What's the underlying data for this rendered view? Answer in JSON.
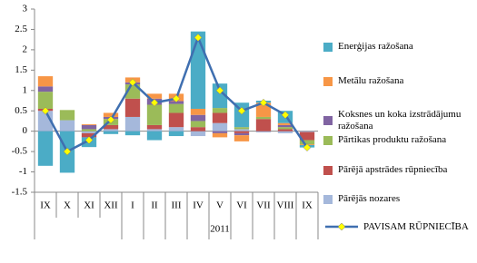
{
  "chart_data": {
    "type": "bar",
    "stacked": true,
    "categories": [
      "IX",
      "X",
      "XI",
      "XII",
      "I",
      "II",
      "III",
      "IV",
      "V",
      "VI",
      "VII",
      "VIII",
      "IX"
    ],
    "group_label": "2011",
    "series": [
      {
        "name": "Pārējās nozares",
        "color": "#a5b8db",
        "values": [
          0.5,
          0.27,
          -0.05,
          0.05,
          0.35,
          0.05,
          0.1,
          -0.12,
          0.2,
          0.05,
          -0.03,
          -0.05,
          -0.02
        ]
      },
      {
        "name": "Pārējā apstrādes rūpniecība",
        "color": "#c0504d",
        "values": [
          0.05,
          0,
          -0.1,
          0.1,
          0.45,
          0.1,
          0.35,
          0.1,
          0.25,
          -0.05,
          0.3,
          0.05,
          -0.2
        ]
      },
      {
        "name": "Pārtikas produktu ražošana",
        "color": "#9bbb59",
        "values": [
          0.42,
          0.25,
          0.05,
          0.15,
          0.35,
          0.5,
          0.22,
          0.15,
          0.12,
          0.05,
          0.05,
          0.05,
          -0.1
        ]
      },
      {
        "name": "Koksnes un koka izstrādājumu ražošana",
        "color": "#8064a2",
        "values": [
          0.13,
          0,
          0.1,
          0.05,
          0.05,
          0.15,
          0.07,
          0.15,
          -0.05,
          -0.05,
          0,
          0.05,
          0
        ]
      },
      {
        "name": "Metālu ražošana",
        "color": "#f79646",
        "values": [
          0.25,
          0,
          0.02,
          0.1,
          0.12,
          0.12,
          0.18,
          0.15,
          -0.1,
          -0.15,
          0.35,
          0.05,
          -0.02
        ]
      },
      {
        "name": "Enerģijas ražošana",
        "color": "#4bacc6",
        "values": [
          -0.85,
          -1.02,
          -0.24,
          -0.07,
          -0.1,
          -0.22,
          -0.12,
          1.9,
          0.6,
          0.6,
          0.05,
          0.3,
          -0.06
        ]
      }
    ],
    "line": {
      "name": "PAVISAM RŪPNIECĪBA",
      "color": "#3f6fb0",
      "marker_color": "#ffff00",
      "values": [
        0.5,
        -0.5,
        -0.22,
        0.28,
        1.2,
        0.7,
        0.8,
        2.3,
        1.0,
        0.5,
        0.7,
        0.4,
        -0.4
      ]
    },
    "ylim": [
      -1.5,
      3
    ],
    "yticks": [
      -1.5,
      -1,
      -0.5,
      0,
      0.5,
      1,
      1.5,
      2,
      2.5,
      3
    ]
  }
}
